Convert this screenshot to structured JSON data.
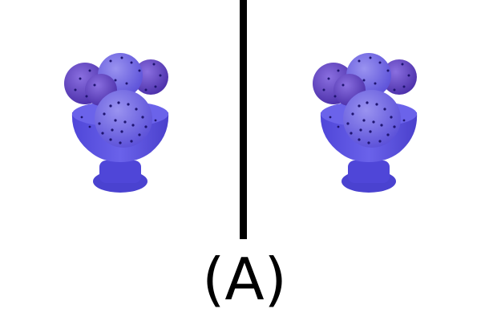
{
  "option_label": "(A)",
  "images": {
    "left": {
      "icon": "ice-cream-sundae-icon"
    },
    "right": {
      "icon": "ice-cream-sundae-icon"
    }
  },
  "colors": {
    "divider": "#000000",
    "cup": "#5a52e0",
    "cup_dark": "#3f36c8",
    "scoop": "#7a6fe8",
    "scoop_shadow": "#5b2fb0",
    "sprinkle": "#1e1470"
  }
}
